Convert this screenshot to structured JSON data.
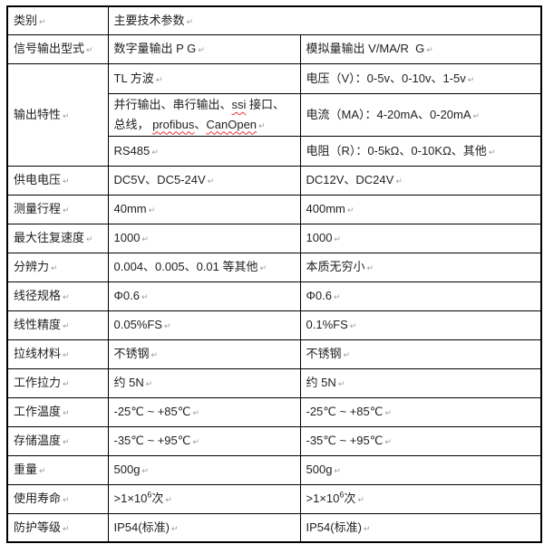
{
  "meta": {
    "paragraph_mark": "↵",
    "colors": {
      "border": "#000000",
      "text": "#1f1f1f",
      "spellcheck_underline": "#e53333",
      "paragraph_mark_color": "#9a9a9a",
      "background": "#ffffff"
    }
  },
  "table": {
    "rows": [
      {
        "cells": [
          {
            "text": "类别"
          },
          {
            "text": "主要技术参数",
            "colspan": 2
          }
        ]
      },
      {
        "cells": [
          {
            "text": "信号输出型式"
          },
          {
            "text": "数字量输出 P G"
          },
          {
            "text": "模拟量输出 V/MA/R  G"
          }
        ]
      },
      {
        "cells": [
          {
            "text": "输出特性",
            "rowspan": 3
          },
          {
            "text": "TL 方波"
          },
          {
            "text": "电压（V）：0-5v、0-10v、1-5v"
          }
        ]
      },
      {
        "cells": [
          {
            "segments": [
              {
                "t": "并行输出、串行输出、"
              },
              {
                "t": "ssi",
                "wavy": true
              },
              {
                "t": " 接口、总线， "
              },
              {
                "t": "profibus",
                "wavy": true
              },
              {
                "t": "、"
              },
              {
                "t": "CanOpen",
                "wavy": true
              }
            ]
          },
          {
            "text": "电流（MA）：4-20mA、0-20mA"
          }
        ]
      },
      {
        "cells": [
          {
            "text": "RS485"
          },
          {
            "text": "电阻（R）：0-5kΩ、0-10KΩ、其他"
          }
        ]
      },
      {
        "cells": [
          {
            "text": "供电电压"
          },
          {
            "text": "DC5V、DC5-24V"
          },
          {
            "text": "DC12V、DC24V"
          }
        ]
      },
      {
        "cells": [
          {
            "text": "测量行程"
          },
          {
            "text": "40mm"
          },
          {
            "text": "400mm"
          }
        ]
      },
      {
        "cells": [
          {
            "text": "最大往复速度"
          },
          {
            "text": "1000"
          },
          {
            "text": "1000"
          }
        ]
      },
      {
        "cells": [
          {
            "text": "分辨力"
          },
          {
            "text": "0.004、0.005、0.01 等其他"
          },
          {
            "text": "本质无穷小"
          }
        ]
      },
      {
        "cells": [
          {
            "text": "线径规格"
          },
          {
            "text": "Φ0.6"
          },
          {
            "text": "Φ0.6"
          }
        ]
      },
      {
        "cells": [
          {
            "text": "线性精度"
          },
          {
            "text": "0.05%FS"
          },
          {
            "text": "0.1%FS"
          }
        ]
      },
      {
        "cells": [
          {
            "text": "拉线材料"
          },
          {
            "text": "不锈钢"
          },
          {
            "text": "不锈钢"
          }
        ]
      },
      {
        "cells": [
          {
            "text": "工作拉力"
          },
          {
            "text": "约 5N"
          },
          {
            "text": "约 5N"
          }
        ]
      },
      {
        "cells": [
          {
            "text": "工作温度"
          },
          {
            "text": "-25℃ ~ +85℃"
          },
          {
            "text": "-25℃ ~ +85℃"
          }
        ]
      },
      {
        "cells": [
          {
            "text": "存储温度"
          },
          {
            "text": "-35℃ ~ +95℃"
          },
          {
            "text": "-35℃ ~ +95℃"
          }
        ]
      },
      {
        "cells": [
          {
            "text": "重量"
          },
          {
            "text": "500g"
          },
          {
            "text": "500g"
          }
        ]
      },
      {
        "cells": [
          {
            "text": "使用寿命"
          },
          {
            "segments": [
              {
                "t": ">1×10"
              },
              {
                "t": "6",
                "sup": true
              },
              {
                "t": "次"
              }
            ]
          },
          {
            "segments": [
              {
                "t": ">1×10"
              },
              {
                "t": "6",
                "sup": true
              },
              {
                "t": "次"
              }
            ]
          }
        ]
      },
      {
        "cells": [
          {
            "text": "防护等级"
          },
          {
            "text": "IP54(标准)"
          },
          {
            "text": "IP54(标准)"
          }
        ]
      }
    ]
  }
}
